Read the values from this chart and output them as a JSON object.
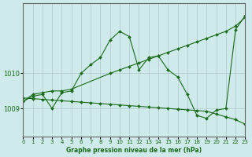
{
  "background_color": "#ceeaea",
  "grid_color": "#b0c8c8",
  "line_color": "#1a6b1a",
  "xlabel": "Graphe pression niveau de la mer (hPa)",
  "xlim": [
    0,
    23
  ],
  "ylim": [
    1008.2,
    1012.0
  ],
  "yticks": [
    1009,
    1010
  ],
  "xticks": [
    0,
    1,
    2,
    3,
    4,
    5,
    6,
    7,
    8,
    9,
    10,
    11,
    12,
    13,
    14,
    15,
    16,
    17,
    18,
    19,
    20,
    21,
    22,
    23
  ],
  "series1_x": [
    0,
    1,
    2,
    3,
    4,
    5,
    9,
    10,
    11,
    12,
    13,
    14,
    15,
    16,
    17,
    18,
    19,
    20,
    21,
    22,
    23
  ],
  "series1_y": [
    1009.2,
    1009.4,
    1009.45,
    1009.5,
    1009.5,
    1009.55,
    1010.0,
    1010.1,
    1010.2,
    1010.3,
    1010.4,
    1010.5,
    1010.6,
    1010.7,
    1010.8,
    1010.9,
    1011.0,
    1011.1,
    1011.2,
    1011.35,
    1011.6
  ],
  "series2_x": [
    0,
    1,
    2,
    3,
    4,
    5,
    6,
    7,
    8,
    9,
    10,
    11,
    12,
    13,
    14,
    15,
    16,
    17,
    18,
    19,
    20,
    21,
    22,
    23
  ],
  "series2_y": [
    1009.3,
    1009.28,
    1009.26,
    1009.24,
    1009.22,
    1009.2,
    1009.18,
    1009.16,
    1009.14,
    1009.12,
    1009.1,
    1009.08,
    1009.06,
    1009.04,
    1009.02,
    1009.0,
    1008.98,
    1008.96,
    1008.94,
    1008.92,
    1008.84,
    1008.76,
    1008.68,
    1008.55
  ],
  "series3_x": [
    0,
    1,
    2,
    3,
    4,
    5,
    6,
    7,
    8,
    9,
    10,
    11,
    12,
    13,
    14,
    15,
    16,
    17,
    18,
    19,
    20,
    21,
    22,
    23
  ],
  "series3_y": [
    1009.2,
    1009.35,
    1009.4,
    1009.0,
    1009.45,
    1009.5,
    1010.0,
    1010.25,
    1010.45,
    1010.95,
    1011.2,
    1011.05,
    1010.1,
    1010.45,
    1010.5,
    1010.1,
    1009.9,
    1009.4,
    1008.8,
    1008.72,
    1008.95,
    1009.0,
    1011.25,
    1011.65
  ]
}
